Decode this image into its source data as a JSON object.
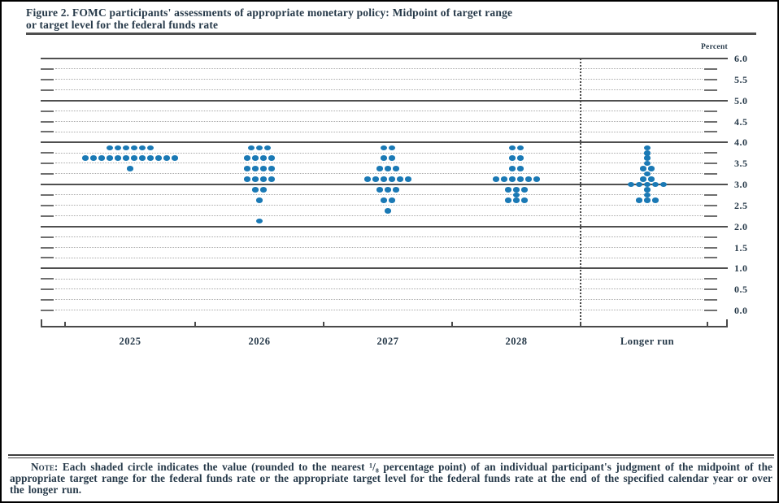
{
  "page": {
    "title_line1": "Figure 2.  FOMC participants' assessments of appropriate monetary policy:  Midpoint of target range",
    "title_line2": "or target level for the federal funds rate"
  },
  "chart": {
    "percent_label": "Percent",
    "y_tick_labels": [
      "6.0",
      "5.5",
      "5.0",
      "4.5",
      "4.0",
      "3.5",
      "3.0",
      "2.5",
      "2.0",
      "1.5",
      "1.0",
      "0.5",
      "0.0"
    ],
    "x_categories": [
      "2025",
      "2026",
      "2027",
      "2028",
      "Longer run"
    ]
  },
  "chart_data": {
    "type": "scatter",
    "title": "FOMC participants' assessments of appropriate monetary policy: Midpoint of target range or target level for the federal funds rate",
    "xlabel": "",
    "ylabel": "Percent",
    "ylim": [
      0.0,
      6.0
    ],
    "y_gridline_step": 0.25,
    "y_label_step": 0.5,
    "legend": "none",
    "dot_color": "#1a79b5",
    "categories": [
      "2025",
      "2026",
      "2027",
      "2028",
      "Longer run"
    ],
    "series": [
      {
        "name": "2025",
        "dots": [
          {
            "rate": 3.875,
            "count": 6
          },
          {
            "rate": 3.625,
            "count": 12
          },
          {
            "rate": 3.375,
            "count": 1
          }
        ]
      },
      {
        "name": "2026",
        "dots": [
          {
            "rate": 3.875,
            "count": 3
          },
          {
            "rate": 3.625,
            "count": 4
          },
          {
            "rate": 3.375,
            "count": 4
          },
          {
            "rate": 3.125,
            "count": 4
          },
          {
            "rate": 2.875,
            "count": 2
          },
          {
            "rate": 2.625,
            "count": 1
          },
          {
            "rate": 2.125,
            "count": 1
          }
        ]
      },
      {
        "name": "2027",
        "dots": [
          {
            "rate": 3.875,
            "count": 2
          },
          {
            "rate": 3.625,
            "count": 2
          },
          {
            "rate": 3.375,
            "count": 3
          },
          {
            "rate": 3.125,
            "count": 6
          },
          {
            "rate": 2.875,
            "count": 3
          },
          {
            "rate": 2.625,
            "count": 2
          },
          {
            "rate": 2.375,
            "count": 1
          }
        ]
      },
      {
        "name": "2028",
        "dots": [
          {
            "rate": 3.875,
            "count": 2
          },
          {
            "rate": 3.625,
            "count": 2
          },
          {
            "rate": 3.375,
            "count": 2
          },
          {
            "rate": 3.125,
            "count": 6
          },
          {
            "rate": 2.875,
            "count": 3
          },
          {
            "rate": 2.75,
            "count": 1
          },
          {
            "rate": 2.625,
            "count": 3
          }
        ]
      },
      {
        "name": "Longer run",
        "dots": [
          {
            "rate": 3.875,
            "count": 1
          },
          {
            "rate": 3.75,
            "count": 1
          },
          {
            "rate": 3.625,
            "count": 1
          },
          {
            "rate": 3.5,
            "count": 1
          },
          {
            "rate": 3.375,
            "count": 2
          },
          {
            "rate": 3.25,
            "count": 1
          },
          {
            "rate": 3.125,
            "count": 2
          },
          {
            "rate": 3.0,
            "count": 5
          },
          {
            "rate": 2.875,
            "count": 1
          },
          {
            "rate": 2.75,
            "count": 1
          },
          {
            "rate": 2.625,
            "count": 3
          }
        ]
      }
    ]
  },
  "note": {
    "label": "Note:",
    "text": " Each shaded circle indicates the value (rounded to the nearest ¹/₈ percentage point) of an individual participant's judgment of the midpoint of the appropriate target range for the federal funds rate or the appropriate target level for the federal funds rate at the end of the specified calendar year or over the longer run."
  }
}
